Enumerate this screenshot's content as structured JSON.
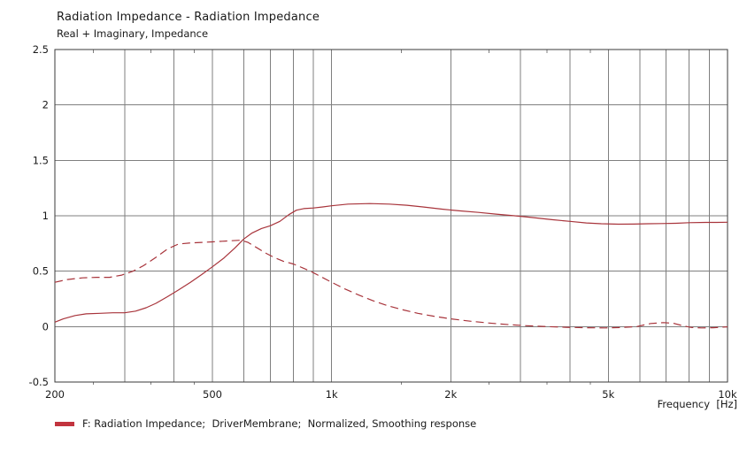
{
  "header": {
    "title": "Radiation Impedance - Radiation Impedance",
    "subtitle": "Real + Imaginary, Impedance"
  },
  "legend": {
    "label": "F: Radiation Impedance;  DriverMembrane;  Normalized, Smoothing response"
  },
  "colors": {
    "curve": "#a8343b",
    "legend_swatch": "#c2343e",
    "grid": "#7f7f7f",
    "border": "#3a3a3a",
    "text": "#1a1a1a",
    "background": "#ffffff"
  },
  "chart_data": {
    "type": "line",
    "title": "Radiation Impedance - Radiation Impedance",
    "subtitle": "Real + Imaginary, Impedance",
    "xlabel": "Frequency  [Hz]",
    "ylabel": "",
    "x_scale": "log",
    "xlim": [
      200,
      10000
    ],
    "ylim": [
      -0.5,
      2.5
    ],
    "grid": true,
    "legend_position": "bottom-left",
    "x_ticks": [
      {
        "f": 200,
        "label": "200"
      },
      {
        "f": 500,
        "label": "500"
      },
      {
        "f": 1000,
        "label": "1k"
      },
      {
        "f": 2000,
        "label": "2k"
      },
      {
        "f": 5000,
        "label": "5k"
      },
      {
        "f": 10000,
        "label": "10k"
      }
    ],
    "y_ticks": [
      {
        "v": 2.5,
        "label": "2.5"
      },
      {
        "v": 2,
        "label": "2"
      },
      {
        "v": 1.5,
        "label": "1.5"
      },
      {
        "v": 1,
        "label": "1"
      },
      {
        "v": 0.5,
        "label": "0.5"
      },
      {
        "v": 0,
        "label": "0"
      },
      {
        "v": -0.5,
        "label": "-0.5"
      }
    ],
    "x_gridlines": [
      200,
      300,
      400,
      500,
      600,
      700,
      800,
      900,
      1000,
      2000,
      3000,
      4000,
      5000,
      6000,
      7000,
      8000,
      9000,
      10000
    ],
    "x_minor_ticks": [
      250,
      350,
      450,
      1500,
      2500,
      3500,
      4500
    ],
    "series": [
      {
        "name": "Real part (solid)",
        "key": "real-impedance-curve",
        "style": "solid",
        "points": [
          [
            200,
            0.04
          ],
          [
            210,
            0.07
          ],
          [
            225,
            0.1
          ],
          [
            240,
            0.115
          ],
          [
            260,
            0.12
          ],
          [
            280,
            0.125
          ],
          [
            300,
            0.125
          ],
          [
            320,
            0.14
          ],
          [
            340,
            0.17
          ],
          [
            360,
            0.21
          ],
          [
            385,
            0.27
          ],
          [
            410,
            0.33
          ],
          [
            440,
            0.4
          ],
          [
            470,
            0.47
          ],
          [
            500,
            0.54
          ],
          [
            535,
            0.62
          ],
          [
            570,
            0.71
          ],
          [
            600,
            0.79
          ],
          [
            630,
            0.845
          ],
          [
            665,
            0.885
          ],
          [
            700,
            0.91
          ],
          [
            740,
            0.95
          ],
          [
            780,
            1.01
          ],
          [
            815,
            1.05
          ],
          [
            850,
            1.065
          ],
          [
            900,
            1.07
          ],
          [
            950,
            1.08
          ],
          [
            1000,
            1.09
          ],
          [
            1100,
            1.105
          ],
          [
            1250,
            1.11
          ],
          [
            1400,
            1.105
          ],
          [
            1550,
            1.095
          ],
          [
            1700,
            1.08
          ],
          [
            1900,
            1.06
          ],
          [
            2100,
            1.045
          ],
          [
            2350,
            1.03
          ],
          [
            2600,
            1.015
          ],
          [
            2900,
            1.0
          ],
          [
            3200,
            0.985
          ],
          [
            3600,
            0.965
          ],
          [
            4000,
            0.95
          ],
          [
            4400,
            0.935
          ],
          [
            4800,
            0.928
          ],
          [
            5300,
            0.924
          ],
          [
            5800,
            0.925
          ],
          [
            6300,
            0.928
          ],
          [
            6800,
            0.93
          ],
          [
            7400,
            0.932
          ],
          [
            8000,
            0.938
          ],
          [
            8800,
            0.94
          ],
          [
            9400,
            0.94
          ],
          [
            10000,
            0.942
          ]
        ]
      },
      {
        "name": "Imaginary part (dashed)",
        "key": "imaginary-impedance-curve",
        "style": "dashed",
        "points": [
          [
            200,
            0.4
          ],
          [
            215,
            0.425
          ],
          [
            235,
            0.44
          ],
          [
            255,
            0.445
          ],
          [
            275,
            0.445
          ],
          [
            295,
            0.465
          ],
          [
            315,
            0.5
          ],
          [
            335,
            0.55
          ],
          [
            360,
            0.625
          ],
          [
            385,
            0.7
          ],
          [
            410,
            0.745
          ],
          [
            440,
            0.755
          ],
          [
            470,
            0.76
          ],
          [
            500,
            0.765
          ],
          [
            530,
            0.77
          ],
          [
            560,
            0.775
          ],
          [
            590,
            0.78
          ],
          [
            615,
            0.76
          ],
          [
            645,
            0.715
          ],
          [
            680,
            0.665
          ],
          [
            715,
            0.625
          ],
          [
            755,
            0.59
          ],
          [
            800,
            0.565
          ],
          [
            845,
            0.53
          ],
          [
            890,
            0.495
          ],
          [
            940,
            0.45
          ],
          [
            1000,
            0.4
          ],
          [
            1080,
            0.34
          ],
          [
            1170,
            0.285
          ],
          [
            1270,
            0.235
          ],
          [
            1380,
            0.19
          ],
          [
            1500,
            0.155
          ],
          [
            1650,
            0.12
          ],
          [
            1800,
            0.095
          ],
          [
            2000,
            0.07
          ],
          [
            2250,
            0.048
          ],
          [
            2500,
            0.032
          ],
          [
            2800,
            0.018
          ],
          [
            3100,
            0.008
          ],
          [
            3500,
            0.0
          ],
          [
            3900,
            -0.006
          ],
          [
            4400,
            -0.01
          ],
          [
            4900,
            -0.012
          ],
          [
            5400,
            -0.008
          ],
          [
            5900,
            0.0
          ],
          [
            6400,
            0.028
          ],
          [
            6900,
            0.036
          ],
          [
            7300,
            0.03
          ],
          [
            7700,
            0.008
          ],
          [
            8100,
            -0.008
          ],
          [
            8600,
            -0.012
          ],
          [
            9200,
            -0.01
          ],
          [
            10000,
            -0.002
          ]
        ]
      }
    ]
  }
}
